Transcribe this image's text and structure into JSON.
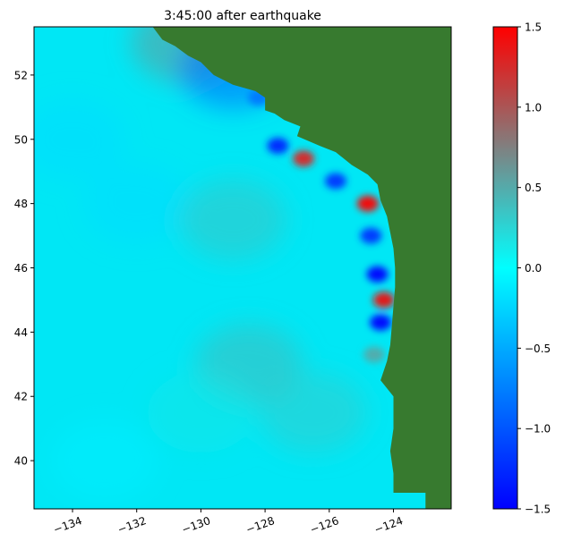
{
  "chart_data": {
    "type": "heatmap",
    "title": "3:45:00 after earthquake",
    "xlabel": "",
    "ylabel": "",
    "xlim": [
      -135.2,
      -122.2
    ],
    "ylim": [
      38.5,
      53.5
    ],
    "x_ticks": [
      -134,
      -132,
      -130,
      -128,
      -126,
      -124
    ],
    "x_tick_labels": [
      "−134",
      "−132",
      "−130",
      "−128",
      "−126",
      "−124"
    ],
    "y_ticks": [
      40,
      42,
      44,
      46,
      48,
      50,
      52
    ],
    "y_tick_labels": [
      "40",
      "42",
      "44",
      "46",
      "48",
      "50",
      "52"
    ],
    "colorbar": {
      "range": [
        -1.5,
        1.5
      ],
      "ticks": [
        -1.5,
        -1.0,
        -0.5,
        0.0,
        0.5,
        1.0,
        1.5
      ],
      "tick_labels": [
        "−1.5",
        "−1.0",
        "−0.5",
        "0.0",
        "0.5",
        "1.0",
        "1.5"
      ],
      "colormap": [
        "#0000ff",
        "#0080ff",
        "#00ffff",
        "#808080",
        "#ff0000"
      ]
    },
    "land_color": "#377a2f",
    "grid": false,
    "land_polygons": [
      [
        [
          -131.5,
          53.5
        ],
        [
          -131.2,
          53.1
        ],
        [
          -130.8,
          52.9
        ],
        [
          -130.4,
          52.6
        ],
        [
          -130.0,
          52.4
        ],
        [
          -129.6,
          52.0
        ],
        [
          -129.0,
          51.7
        ],
        [
          -128.3,
          51.5
        ],
        [
          -128.0,
          51.3
        ],
        [
          -128.0,
          50.9
        ],
        [
          -127.7,
          50.8
        ],
        [
          -127.4,
          50.6
        ],
        [
          -126.9,
          50.4
        ],
        [
          -127.0,
          50.1
        ],
        [
          -126.3,
          49.8
        ],
        [
          -125.8,
          49.6
        ],
        [
          -125.3,
          49.2
        ],
        [
          -124.8,
          48.9
        ],
        [
          -124.5,
          48.6
        ],
        [
          -124.4,
          48.1
        ],
        [
          -124.2,
          47.6
        ],
        [
          -124.1,
          47.1
        ],
        [
          -124.0,
          46.6
        ],
        [
          -123.95,
          46.0
        ],
        [
          -123.95,
          45.4
        ],
        [
          -124.0,
          44.8
        ],
        [
          -124.05,
          44.2
        ],
        [
          -124.1,
          43.6
        ],
        [
          -124.2,
          43.1
        ],
        [
          -124.4,
          42.5
        ],
        [
          -124.0,
          42.0
        ],
        [
          -124.0,
          41.0
        ],
        [
          -124.1,
          40.3
        ],
        [
          -124.0,
          39.6
        ],
        [
          -124.0,
          39.0
        ],
        [
          -123.0,
          39.0
        ],
        [
          -123.0,
          38.5
        ],
        [
          -122.2,
          38.5
        ],
        [
          -122.2,
          53.5
        ]
      ]
    ],
    "water_levels": [
      {
        "lon": -134.0,
        "lat": 50.0,
        "value": -0.2
      },
      {
        "lon": -132.0,
        "lat": 48.0,
        "value": -0.2
      },
      {
        "lon": -129.0,
        "lat": 47.5,
        "value": 0.35
      },
      {
        "lon": -128.5,
        "lat": 43.0,
        "value": 0.4
      },
      {
        "lon": -130.0,
        "lat": 41.5,
        "value": 0.15
      },
      {
        "lon": -126.5,
        "lat": 41.5,
        "value": 0.3
      },
      {
        "lon": -133.0,
        "lat": 40.0,
        "value": -0.1
      },
      {
        "lon": -130.5,
        "lat": 53.0,
        "value": 0.6
      },
      {
        "lon": -129.0,
        "lat": 52.2,
        "value": -0.9
      },
      {
        "lon": -128.2,
        "lat": 51.3,
        "value": -0.8
      },
      {
        "lon": -127.6,
        "lat": 49.8,
        "value": -1.3
      },
      {
        "lon": -126.8,
        "lat": 49.4,
        "value": 1.3
      },
      {
        "lon": -125.8,
        "lat": 48.7,
        "value": -1.2
      },
      {
        "lon": -124.8,
        "lat": 48.0,
        "value": 1.5
      },
      {
        "lon": -124.7,
        "lat": 47.0,
        "value": -1.2
      },
      {
        "lon": -124.5,
        "lat": 45.8,
        "value": -1.5
      },
      {
        "lon": -124.3,
        "lat": 45.0,
        "value": 1.4
      },
      {
        "lon": -124.4,
        "lat": 44.3,
        "value": -1.5
      },
      {
        "lon": -124.6,
        "lat": 43.3,
        "value": 0.5
      }
    ]
  }
}
